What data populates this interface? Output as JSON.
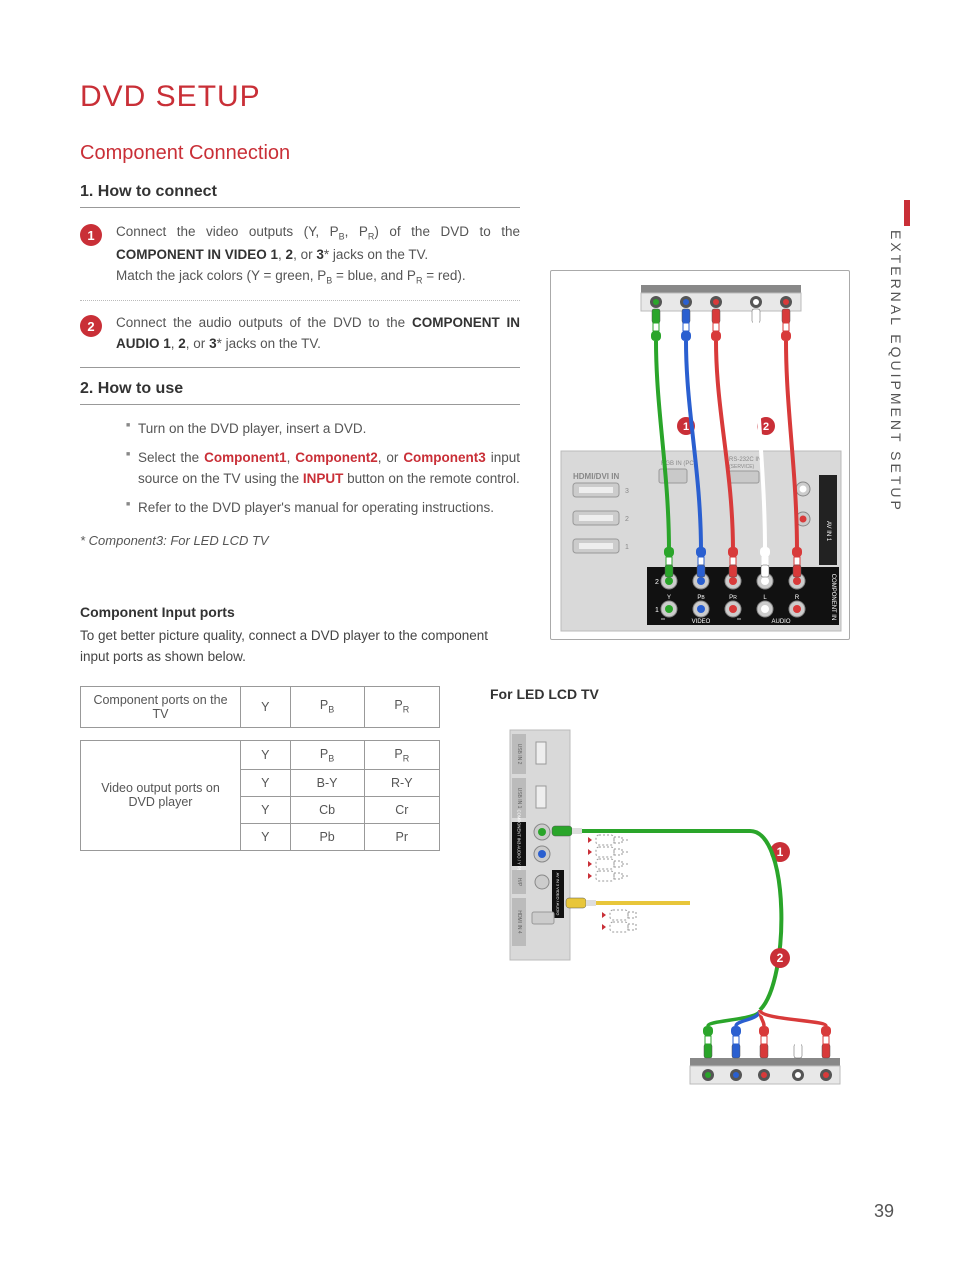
{
  "page_number": "39",
  "side_tab": "EXTERNAL EQUIPMENT SETUP",
  "title": "DVD SETUP",
  "subtitle": "Component Connection",
  "colors": {
    "accent": "#c92f37",
    "text": "#555555",
    "green": "#2aa52a",
    "blue": "#2a5fd0",
    "red": "#d83a3a",
    "white": "#ffffff",
    "border": "#999999",
    "panel": "#c9c9c9"
  },
  "sections": {
    "connect": {
      "heading": "1. How to connect",
      "steps": [
        {
          "num": "1",
          "html": "Connect the video outputs (Y, P<span class='sub'>B</span>, P<span class='sub'>R</span>)  of the DVD to the <b>COMPONENT IN VIDEO 1</b>, <b>2</b>, or <b>3</b>* jacks on the TV.<br>Match the jack colors (Y = green, P<span class='sub'>B</span> = blue, and P<span class='sub'>R</span> = red)."
        },
        {
          "num": "2",
          "html": "Connect the audio outputs of the DVD to the <b>COMPONENT IN AUDIO 1</b>, <b>2</b>, or <b>3</b>* jacks on the TV."
        }
      ]
    },
    "use": {
      "heading": "2. How to use",
      "items": [
        "Turn on the DVD player, insert a DVD.",
        "Select the <span class='red'>Component1</span>, <span class='red'>Component2</span>, or <span class='red'>Component3</span> input source on the TV using the <span class='red'>INPUT</span> button on the remote control.",
        "Refer to the DVD player's manual for operating instructions."
      ]
    },
    "footnote": "* Component3: For LED LCD TV"
  },
  "ports": {
    "heading": "Component Input ports",
    "desc": "To get better picture quality, connect a DVD player to the component input ports as shown below.",
    "header_row": [
      "Component ports on the TV",
      "Y",
      "P<span class='sub'>B</span>",
      "P<span class='sub'>R</span>"
    ],
    "body_label": "Video output ports on DVD player",
    "body_rows": [
      [
        "Y",
        "P<span class='sub'>B</span>",
        "P<span class='sub'>R</span>"
      ],
      [
        "Y",
        "B-Y",
        "R-Y"
      ],
      [
        "Y",
        "Cb",
        "Cr"
      ],
      [
        "Y",
        "Pb",
        "Pr"
      ]
    ]
  },
  "diagram1": {
    "dvd_jacks": [
      {
        "c": "#2aa52a"
      },
      {
        "c": "#2a5fd0"
      },
      {
        "c": "#d83a3a"
      },
      {
        "c": "#ffffff"
      },
      {
        "c": "#d83a3a"
      }
    ],
    "badges": [
      "1",
      "2"
    ],
    "panel_labels": {
      "hdmi": "HDMI/DVI IN",
      "rgb": "RGB IN (PC)",
      "rs232": "RS-232C IN\n(SERVICE)",
      "component": "COMPONENT IN",
      "avin": "AV IN 1",
      "video": "VIDEO",
      "audio": "AUDIO",
      "rows": [
        "3",
        "2",
        "1"
      ],
      "ypbpr": [
        "Y",
        "P<tspan font-size='5'>B</tspan>",
        "P<tspan font-size='5'>R</tspan>",
        "L",
        "R"
      ]
    }
  },
  "diagram2": {
    "label": "For LED LCD TV",
    "side_labels": [
      "USB IN 2",
      "USB IN 1",
      "COMPONENT IN3\nAUDIO / Y PB PR",
      "H/P",
      "HDMI\nIN 4",
      "AV IN 3\nVIDEO / AUDIO"
    ],
    "badges": [
      "1",
      "2"
    ]
  }
}
